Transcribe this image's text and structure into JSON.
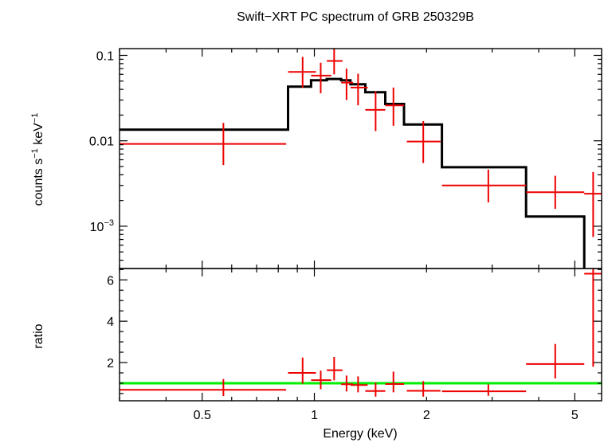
{
  "chart_data": {
    "title": "Swift−XRT PC spectrum of GRB 250329B",
    "xlabel": "Energy (keV)",
    "x_scale": "log",
    "xlim": [
      0.3,
      5.9
    ],
    "x_tick_labels": [
      {
        "value": 0.5,
        "label": "0.5"
      },
      {
        "value": 1,
        "label": "1"
      },
      {
        "value": 2,
        "label": "2"
      },
      {
        "value": 5,
        "label": "5"
      }
    ],
    "colors": {
      "data": "#ee0000",
      "model": "#000000",
      "unity": "#00ee00"
    },
    "panels": [
      {
        "name": "spectrum",
        "type": "scatter",
        "ylabel_parts": {
          "main": "counts s",
          "sup1": "−1",
          "mid": " keV",
          "sup2": "−1"
        },
        "y_scale": "log",
        "ylim": [
          0.00032,
          0.12
        ],
        "y_tick_labels": [
          {
            "value": 0.1,
            "label": "0.1"
          },
          {
            "value": 0.01,
            "label": "0.01"
          },
          {
            "value": 0.001,
            "base": "10",
            "exp": "−3"
          }
        ],
        "data": [
          {
            "x": 0.57,
            "xlo": 0.3,
            "xhi": 0.84,
            "y": 0.0092,
            "ylo": 0.0052,
            "yhi": 0.0162
          },
          {
            "x": 0.93,
            "xlo": 0.85,
            "xhi": 1.01,
            "y": 0.064,
            "ylo": 0.042,
            "yhi": 0.096
          },
          {
            "x": 1.04,
            "xlo": 0.98,
            "xhi": 1.11,
            "y": 0.058,
            "ylo": 0.036,
            "yhi": 0.082
          },
          {
            "x": 1.13,
            "xlo": 1.08,
            "xhi": 1.19,
            "y": 0.086,
            "ylo": 0.06,
            "yhi": 0.12
          },
          {
            "x": 1.22,
            "xlo": 1.18,
            "xhi": 1.27,
            "y": 0.048,
            "ylo": 0.03,
            "yhi": 0.07
          },
          {
            "x": 1.31,
            "xlo": 1.25,
            "xhi": 1.39,
            "y": 0.042,
            "ylo": 0.026,
            "yhi": 0.061
          },
          {
            "x": 1.46,
            "xlo": 1.37,
            "xhi": 1.55,
            "y": 0.023,
            "ylo": 0.013,
            "yhi": 0.038
          },
          {
            "x": 1.63,
            "xlo": 1.55,
            "xhi": 1.74,
            "y": 0.026,
            "ylo": 0.015,
            "yhi": 0.042
          },
          {
            "x": 1.96,
            "xlo": 1.77,
            "xhi": 2.18,
            "y": 0.0098,
            "ylo": 0.0055,
            "yhi": 0.017
          },
          {
            "x": 2.93,
            "xlo": 2.2,
            "xhi": 3.7,
            "y": 0.003,
            "ylo": 0.0019,
            "yhi": 0.0046
          },
          {
            "x": 4.43,
            "xlo": 3.7,
            "xhi": 5.3,
            "y": 0.0025,
            "ylo": 0.0016,
            "yhi": 0.0039
          },
          {
            "x": 5.6,
            "xlo": 5.3,
            "xhi": 5.9,
            "y": 0.0024,
            "ylo": 0.00075,
            "yhi": 0.0043
          }
        ],
        "model_steps": [
          {
            "xlo": 0.3,
            "xhi": 0.85,
            "y": 0.0135
          },
          {
            "xlo": 0.85,
            "xhi": 0.98,
            "y": 0.043
          },
          {
            "xlo": 0.98,
            "xhi": 1.08,
            "y": 0.051
          },
          {
            "xlo": 1.08,
            "xhi": 1.18,
            "y": 0.053
          },
          {
            "xlo": 1.18,
            "xhi": 1.25,
            "y": 0.051
          },
          {
            "xlo": 1.25,
            "xhi": 1.37,
            "y": 0.046
          },
          {
            "xlo": 1.37,
            "xhi": 1.55,
            "y": 0.037
          },
          {
            "xlo": 1.55,
            "xhi": 1.74,
            "y": 0.027
          },
          {
            "xlo": 1.74,
            "xhi": 2.2,
            "y": 0.0155
          },
          {
            "xlo": 2.2,
            "xhi": 3.7,
            "y": 0.0049
          },
          {
            "xlo": 3.7,
            "xhi": 5.3,
            "y": 0.0013
          },
          {
            "xlo": 5.3,
            "xhi": 5.55,
            "y": 0.0003
          }
        ]
      },
      {
        "name": "ratio",
        "type": "scatter",
        "ylabel": "ratio",
        "y_scale": "linear",
        "ylim": [
          0.15,
          6.55
        ],
        "y_tick_labels": [
          {
            "value": 2,
            "label": "2"
          },
          {
            "value": 4,
            "label": "4"
          },
          {
            "value": 6,
            "label": "6"
          }
        ],
        "unity_line": 1,
        "data": [
          {
            "x": 0.57,
            "xlo": 0.3,
            "xhi": 0.84,
            "y": 0.68,
            "ylo": 0.38,
            "yhi": 1.2
          },
          {
            "x": 0.93,
            "xlo": 0.85,
            "xhi": 1.01,
            "y": 1.5,
            "ylo": 0.98,
            "yhi": 2.24
          },
          {
            "x": 1.04,
            "xlo": 0.98,
            "xhi": 1.11,
            "y": 1.15,
            "ylo": 0.71,
            "yhi": 1.61
          },
          {
            "x": 1.13,
            "xlo": 1.08,
            "xhi": 1.19,
            "y": 1.63,
            "ylo": 1.14,
            "yhi": 2.27
          },
          {
            "x": 1.22,
            "xlo": 1.18,
            "xhi": 1.27,
            "y": 0.95,
            "ylo": 0.6,
            "yhi": 1.37
          },
          {
            "x": 1.31,
            "xlo": 1.25,
            "xhi": 1.39,
            "y": 0.91,
            "ylo": 0.56,
            "yhi": 1.33
          },
          {
            "x": 1.46,
            "xlo": 1.37,
            "xhi": 1.55,
            "y": 0.62,
            "ylo": 0.35,
            "yhi": 1.03
          },
          {
            "x": 1.63,
            "xlo": 1.55,
            "xhi": 1.74,
            "y": 0.96,
            "ylo": 0.56,
            "yhi": 1.56
          },
          {
            "x": 1.96,
            "xlo": 1.77,
            "xhi": 2.18,
            "y": 0.63,
            "ylo": 0.35,
            "yhi": 1.1
          },
          {
            "x": 2.93,
            "xlo": 2.2,
            "xhi": 3.7,
            "y": 0.61,
            "ylo": 0.39,
            "yhi": 0.94
          },
          {
            "x": 4.43,
            "xlo": 3.7,
            "xhi": 5.3,
            "y": 1.93,
            "ylo": 1.23,
            "yhi": 2.9
          },
          {
            "x": 5.6,
            "xlo": 5.3,
            "xhi": 5.9,
            "y": 6.3,
            "ylo": 1.8,
            "yhi": 6.55
          }
        ]
      }
    ]
  }
}
